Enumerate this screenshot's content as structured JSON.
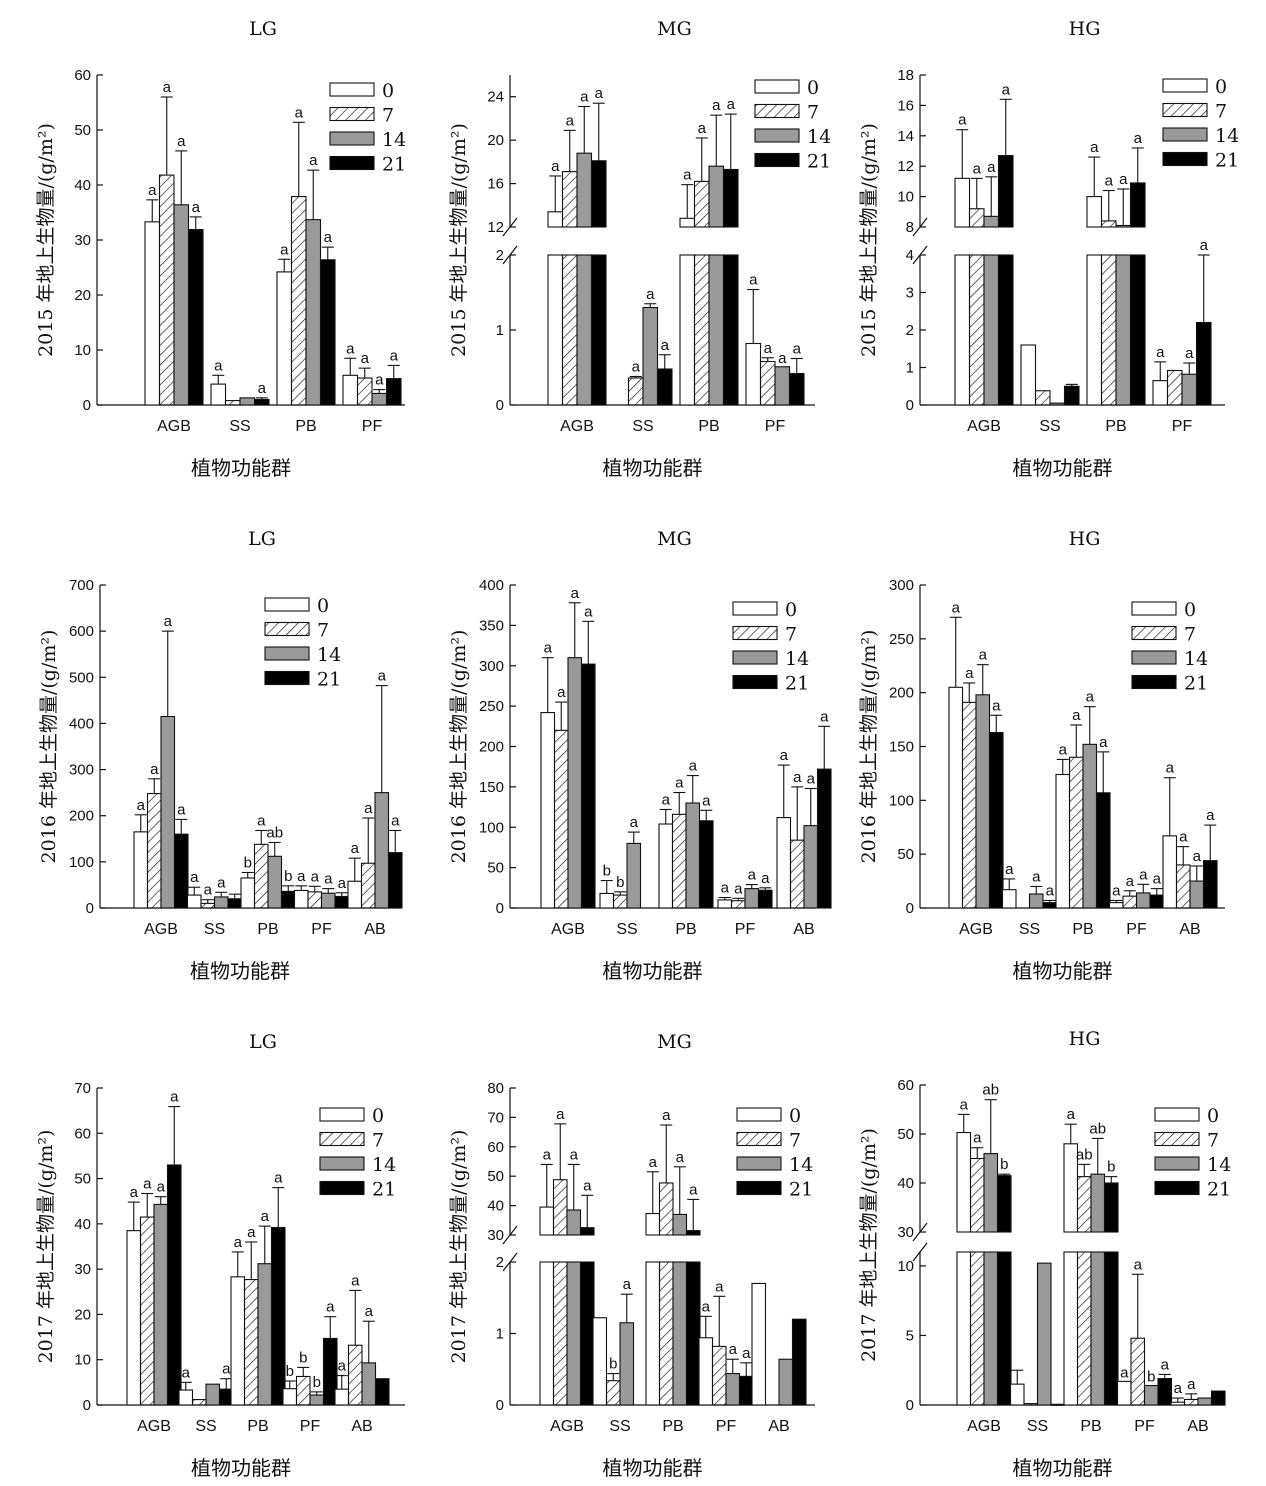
{
  "chart_data": [
    {
      "type": "bar",
      "title": "LG",
      "xlabel": "植物功能群",
      "ylabel": "2015 年地上生物量/(g/m²)",
      "categories": [
        "AGB",
        "SS",
        "PB",
        "PF"
      ],
      "ylim": [
        0,
        60
      ],
      "yticks": [
        0,
        10,
        20,
        30,
        40,
        50,
        60
      ],
      "legend": [
        "0",
        "7",
        "14",
        "21"
      ],
      "series": [
        {
          "name": "0",
          "values": [
            33.3,
            3.8,
            24.2,
            5.4
          ],
          "errors": [
            4,
            1.6,
            2.3,
            3.1
          ],
          "labels": [
            "a",
            "a",
            "a",
            "a"
          ]
        },
        {
          "name": "7",
          "values": [
            41.8,
            0.8,
            37.9,
            4.9
          ],
          "errors": [
            14.2,
            0,
            13.5,
            1.8
          ],
          "labels": [
            "a",
            "",
            "a",
            "a"
          ]
        },
        {
          "name": "14",
          "values": [
            36.4,
            1.3,
            33.7,
            2.1
          ],
          "errors": [
            9.8,
            0,
            9,
            0.7
          ],
          "labels": [
            "a",
            "",
            "a",
            "a"
          ]
        },
        {
          "name": "21",
          "values": [
            31.9,
            1,
            26.4,
            4.8
          ],
          "errors": [
            2.3,
            0.3,
            2.3,
            2.4
          ],
          "labels": [
            "a",
            "a",
            "a",
            "a"
          ]
        }
      ]
    },
    {
      "type": "bar",
      "title": "MG",
      "xlabel": "植物功能群",
      "ylabel": "2015 年地上生物量/(g/m²)",
      "categories": [
        "AGB",
        "SS",
        "PB",
        "PF"
      ],
      "ylim": [
        0,
        26
      ],
      "axis_break": {
        "lower": [
          0,
          2
        ],
        "upper": [
          12,
          26
        ]
      },
      "yticks": [
        0,
        1,
        2,
        12,
        16,
        20,
        24
      ],
      "legend": [
        "0",
        "7",
        "14",
        "21"
      ],
      "series": [
        {
          "name": "0",
          "values": [
            13.4,
            0,
            12.8,
            0.82
          ],
          "errors": [
            3.3,
            0,
            3.1,
            0.72
          ],
          "labels": [
            "a",
            "",
            "a",
            "a"
          ]
        },
        {
          "name": "7",
          "values": [
            17.1,
            0.36,
            16.2,
            0.58
          ],
          "errors": [
            3.8,
            0.02,
            4,
            0.05
          ],
          "labels": [
            "a",
            "a",
            "a",
            "a"
          ]
        },
        {
          "name": "14",
          "values": [
            18.8,
            1.3,
            17.6,
            0.51
          ],
          "errors": [
            4.3,
            0.05,
            4.7,
            0
          ],
          "labels": [
            "a",
            "a",
            "a",
            "a"
          ]
        },
        {
          "name": "21",
          "values": [
            18.1,
            0.48,
            17.3,
            0.42
          ],
          "errors": [
            5.3,
            0.19,
            5.1,
            0.2
          ],
          "labels": [
            "a",
            "a",
            "a",
            "a"
          ]
        }
      ]
    },
    {
      "type": "bar",
      "title": "HG",
      "xlabel": "植物功能群",
      "ylabel": "2015 年地上生物量/(g/m²)",
      "categories": [
        "AGB",
        "SS",
        "PB",
        "PF"
      ],
      "ylim": [
        0,
        18
      ],
      "axis_break": {
        "lower": [
          0,
          4
        ],
        "upper": [
          8,
          18
        ]
      },
      "yticks": [
        0,
        1,
        2,
        3,
        4,
        8,
        10,
        12,
        14,
        16,
        18
      ],
      "legend": [
        "0",
        "7",
        "14",
        "21"
      ],
      "series": [
        {
          "name": "0",
          "values": [
            11.2,
            1.6,
            10,
            0.65
          ],
          "errors": [
            3.2,
            0,
            2.6,
            0.5
          ],
          "labels": [
            "a",
            "",
            "a",
            "a"
          ]
        },
        {
          "name": "7",
          "values": [
            9.2,
            0.38,
            8.4,
            0.92
          ],
          "errors": [
            2,
            0,
            2,
            0
          ],
          "labels": [
            "a",
            "",
            "a",
            ""
          ]
        },
        {
          "name": "14",
          "values": [
            8.7,
            0.05,
            8.1,
            0.82
          ],
          "errors": [
            2.6,
            0,
            2.4,
            0.3
          ],
          "labels": [
            "a",
            "",
            "a",
            "a"
          ]
        },
        {
          "name": "21",
          "values": [
            12.7,
            0.5,
            10.9,
            2.2
          ],
          "errors": [
            3.7,
            0.05,
            2.3,
            1.8
          ],
          "labels": [
            "a",
            "",
            "a",
            "a"
          ]
        }
      ]
    },
    {
      "type": "bar",
      "title": "LG",
      "xlabel": "植物功能群",
      "ylabel": "2016 年地上生物量/(g/m²)",
      "categories": [
        "AGB",
        "SS",
        "PB",
        "PF",
        "AB"
      ],
      "ylim": [
        0,
        700
      ],
      "yticks": [
        0,
        100,
        200,
        300,
        400,
        500,
        600,
        700
      ],
      "legend": [
        "0",
        "7",
        "14",
        "21"
      ],
      "series": [
        {
          "name": "0",
          "values": [
            165,
            28,
            65,
            38,
            58
          ],
          "errors": [
            37,
            17,
            12,
            10,
            50
          ],
          "labels": [
            "a",
            "a",
            "b",
            "a",
            "a"
          ]
        },
        {
          "name": "7",
          "values": [
            248,
            10,
            138,
            35,
            97
          ],
          "errors": [
            32,
            8,
            30,
            12,
            98
          ],
          "labels": [
            "a",
            "a",
            "a",
            "a",
            "a"
          ]
        },
        {
          "name": "14",
          "values": [
            415,
            24,
            112,
            32,
            250
          ],
          "errors": [
            185,
            10,
            30,
            10,
            232
          ],
          "labels": [
            "a",
            "a",
            "ab",
            "a",
            "a"
          ]
        },
        {
          "name": "21",
          "values": [
            160,
            20,
            36,
            25,
            120
          ],
          "errors": [
            32,
            10,
            12,
            8,
            48
          ],
          "labels": [
            "a",
            "",
            "b",
            "a",
            "a"
          ]
        }
      ]
    },
    {
      "type": "bar",
      "title": "MG",
      "xlabel": "植物功能群",
      "ylabel": "2016 年地上生物量/(g/m²)",
      "categories": [
        "AGB",
        "SS",
        "PB",
        "PF",
        "AB"
      ],
      "ylim": [
        0,
        400
      ],
      "yticks": [
        0,
        50,
        100,
        150,
        200,
        250,
        300,
        350,
        400
      ],
      "legend": [
        "0",
        "7",
        "14",
        "21"
      ],
      "series": [
        {
          "name": "0",
          "values": [
            242,
            18,
            104,
            10,
            112
          ],
          "errors": [
            68,
            16,
            18,
            3,
            65
          ],
          "labels": [
            "a",
            "b",
            "a",
            "a",
            "a"
          ]
        },
        {
          "name": "7",
          "values": [
            220,
            16,
            116,
            9,
            84
          ],
          "errors": [
            35,
            4,
            27,
            3,
            66
          ],
          "labels": [
            "a",
            "b",
            "a",
            "a",
            "a"
          ]
        },
        {
          "name": "14",
          "values": [
            310,
            80,
            130,
            24,
            102
          ],
          "errors": [
            68,
            14,
            34,
            5,
            46
          ],
          "labels": [
            "a",
            "a",
            "a",
            "a",
            "a"
          ]
        },
        {
          "name": "21",
          "values": [
            302,
            0,
            108,
            22,
            172
          ],
          "errors": [
            53,
            0,
            13,
            3,
            53
          ],
          "labels": [
            "a",
            "",
            "a",
            "a",
            "a"
          ]
        }
      ]
    },
    {
      "type": "bar",
      "title": "HG",
      "xlabel": "植物功能群",
      "ylabel": "2016 年地上生物量/(g/m²)",
      "categories": [
        "AGB",
        "SS",
        "PB",
        "PF",
        "AB"
      ],
      "ylim": [
        0,
        300
      ],
      "yticks": [
        0,
        50,
        100,
        150,
        200,
        250,
        300
      ],
      "legend": [
        "0",
        "7",
        "14",
        "21"
      ],
      "series": [
        {
          "name": "0",
          "values": [
            205,
            17,
            124,
            5,
            67
          ],
          "errors": [
            65,
            10,
            14,
            2,
            54
          ],
          "labels": [
            "a",
            "a",
            "a",
            "a",
            "a"
          ]
        },
        {
          "name": "7",
          "values": [
            191,
            0,
            140,
            11,
            40
          ],
          "errors": [
            18,
            0,
            30,
            5,
            17
          ],
          "labels": [
            "a",
            "",
            "a",
            "a",
            "a"
          ]
        },
        {
          "name": "14",
          "values": [
            198,
            13,
            152,
            14,
            25
          ],
          "errors": [
            28,
            7,
            35,
            8,
            14
          ],
          "labels": [
            "a",
            "a",
            "a",
            "a",
            "a"
          ]
        },
        {
          "name": "21",
          "values": [
            163,
            5,
            107,
            12,
            44
          ],
          "errors": [
            16,
            2,
            38,
            6,
            33
          ],
          "labels": [
            "a",
            "a",
            "a",
            "a",
            "a"
          ]
        }
      ]
    },
    {
      "type": "bar",
      "title": "LG",
      "xlabel": "植物功能群",
      "ylabel": "2017 年地上生物量/(g/m²)",
      "categories": [
        "AGB",
        "SS",
        "PB",
        "PF",
        "AB"
      ],
      "ylim": [
        0,
        70
      ],
      "yticks": [
        0,
        10,
        20,
        30,
        40,
        50,
        60,
        70
      ],
      "legend": [
        "0",
        "7",
        "14",
        "21"
      ],
      "series": [
        {
          "name": "0",
          "values": [
            38.5,
            3.3,
            28.3,
            3.6,
            3.5
          ],
          "errors": [
            6.3,
            1.7,
            5.5,
            1.7,
            3
          ],
          "labels": [
            "a",
            "a",
            "a",
            "b",
            "a"
          ]
        },
        {
          "name": "7",
          "values": [
            41.5,
            1.2,
            27.7,
            6.3,
            13.2
          ],
          "errors": [
            5.2,
            0,
            8.3,
            2,
            12.1
          ],
          "labels": [
            "a",
            "",
            "a",
            "b",
            "a"
          ]
        },
        {
          "name": "14",
          "values": [
            44.3,
            4.6,
            31.2,
            2.2,
            9.3
          ],
          "errors": [
            1.7,
            0,
            8.3,
            0.7,
            9.2
          ],
          "labels": [
            "a",
            "",
            "a",
            "b",
            "a"
          ]
        },
        {
          "name": "21",
          "values": [
            53,
            3.5,
            39.2,
            14.7,
            5.8
          ],
          "errors": [
            12.9,
            2.3,
            8.8,
            4.8,
            0
          ],
          "labels": [
            "a",
            "a",
            "a",
            "a",
            ""
          ]
        }
      ]
    },
    {
      "type": "bar",
      "title": "MG",
      "xlabel": "植物功能群",
      "ylabel": "2017 年地上生物量/(g/m²)",
      "categories": [
        "AGB",
        "SS",
        "PB",
        "PF",
        "AB"
      ],
      "ylim": [
        0,
        80
      ],
      "axis_break": {
        "lower": [
          0,
          2
        ],
        "upper": [
          30,
          80
        ]
      },
      "yticks": [
        0,
        1,
        2,
        30,
        40,
        50,
        60,
        70,
        80
      ],
      "legend": [
        "0",
        "7",
        "14",
        "21"
      ],
      "series": [
        {
          "name": "0",
          "values": [
            39.5,
            1.22,
            37.3,
            0.94,
            1.7
          ],
          "errors": [
            14.5,
            0,
            14.2,
            0.3,
            0
          ],
          "labels": [
            "a",
            "",
            "a",
            "a",
            ""
          ]
        },
        {
          "name": "7",
          "values": [
            48.8,
            0.34,
            47.7,
            0.82,
            0
          ],
          "errors": [
            19,
            0.1,
            19.7,
            0.7,
            0
          ],
          "labels": [
            "a",
            "b",
            "a",
            "a",
            ""
          ]
        },
        {
          "name": "14",
          "values": [
            38.5,
            1.15,
            37,
            0.44,
            0.64
          ],
          "errors": [
            15.5,
            0.4,
            16.2,
            0.2,
            0
          ],
          "labels": [
            "a",
            "a",
            "a",
            "a",
            ""
          ]
        },
        {
          "name": "21",
          "values": [
            32.5,
            0,
            31.5,
            0.4,
            1.2
          ],
          "errors": [
            11,
            0,
            10.6,
            0.19,
            0
          ],
          "labels": [
            "a",
            "",
            "a",
            "a",
            ""
          ]
        }
      ]
    },
    {
      "type": "bar",
      "title": "HG",
      "xlabel": "植物功能群",
      "ylabel": "2017 年地上生物量/(g/m²)",
      "categories": [
        "AGB",
        "SS",
        "PB",
        "PF",
        "AB"
      ],
      "ylim": [
        0,
        60
      ],
      "axis_break": {
        "lower": [
          0,
          11
        ],
        "upper": [
          30,
          60
        ]
      },
      "yticks": [
        0,
        5,
        10,
        30,
        40,
        50,
        60
      ],
      "legend": [
        "0",
        "7",
        "14",
        "21"
      ],
      "series": [
        {
          "name": "0",
          "values": [
            50.3,
            1.5,
            48,
            1.7,
            0.2
          ],
          "errors": [
            3.7,
            1,
            4,
            0,
            0.3
          ],
          "labels": [
            "a",
            "",
            "a",
            "a",
            "a"
          ]
        },
        {
          "name": "7",
          "values": [
            45,
            0.1,
            41.3,
            4.8,
            0.4
          ],
          "errors": [
            2.2,
            0,
            2.5,
            4.6,
            0.4
          ],
          "labels": [
            "a",
            "",
            "ab",
            "a",
            "a"
          ]
        },
        {
          "name": "14",
          "values": [
            46,
            10.2,
            41.8,
            1.4,
            0.5
          ],
          "errors": [
            11,
            0,
            7.3,
            0,
            0
          ],
          "labels": [
            "ab",
            "",
            "ab",
            "b",
            ""
          ]
        },
        {
          "name": "21",
          "values": [
            41.5,
            0.05,
            40,
            1.9,
            1
          ],
          "errors": [
            0.3,
            0,
            1.3,
            0.3,
            0
          ],
          "labels": [
            "b",
            "",
            "b",
            "a",
            ""
          ]
        }
      ]
    }
  ]
}
